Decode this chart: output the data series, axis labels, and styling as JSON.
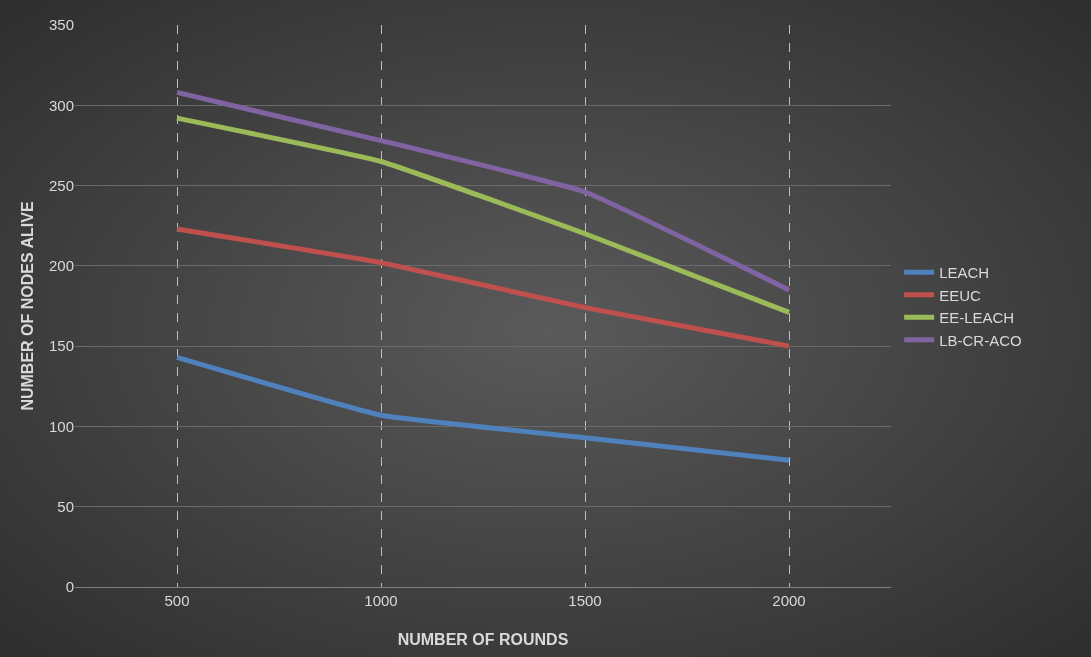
{
  "chart_data": {
    "type": "line",
    "xlabel": "NUMBER OF ROUNDS",
    "ylabel": "NUMBER OF NODES ALIVE",
    "categories": [
      "500",
      "1000",
      "1500",
      "2000"
    ],
    "series": [
      {
        "name": "LEACH",
        "color": "#4f81bd",
        "values": [
          143,
          107,
          93,
          79
        ]
      },
      {
        "name": "EEUC",
        "color": "#c0504d",
        "values": [
          223,
          202,
          174,
          150
        ]
      },
      {
        "name": "EE-LEACH",
        "color": "#9bbb59",
        "values": [
          292,
          265,
          220,
          171
        ]
      },
      {
        "name": "LB-CR-ACO",
        "color": "#8064a2",
        "values": [
          308,
          278,
          246,
          185
        ]
      }
    ],
    "ylim": [
      0,
      350
    ],
    "yticks": [
      0,
      50,
      100,
      150,
      200,
      250,
      300,
      350
    ],
    "grid": true,
    "legend": "right",
    "marker": "none",
    "line_style": "solid"
  }
}
